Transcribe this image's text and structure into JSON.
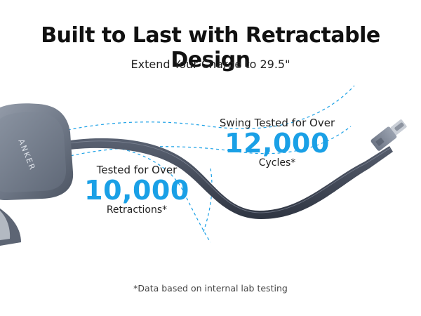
{
  "headline": "Built to Last with Retractable Design",
  "subheadline": "Extend Your Charge to 29.5\"",
  "swing_callout": {
    "lead": "Swing Tested for Over",
    "value": "12,000",
    "tail": "Cycles*"
  },
  "retraction_callout": {
    "lead": "Tested for Over",
    "value": "10,000",
    "tail": "Retractions*"
  },
  "footnote": "*Data based on internal lab testing",
  "product": {
    "brand_logo": "ANKER",
    "icons": [
      "charger-body-icon",
      "retractable-cable-icon",
      "usb-c-connector-icon"
    ]
  },
  "colors": {
    "accent": "#1aa0e6",
    "text": "#1a1a1a",
    "cable": "#3f4656",
    "charger": "#7e8796"
  }
}
